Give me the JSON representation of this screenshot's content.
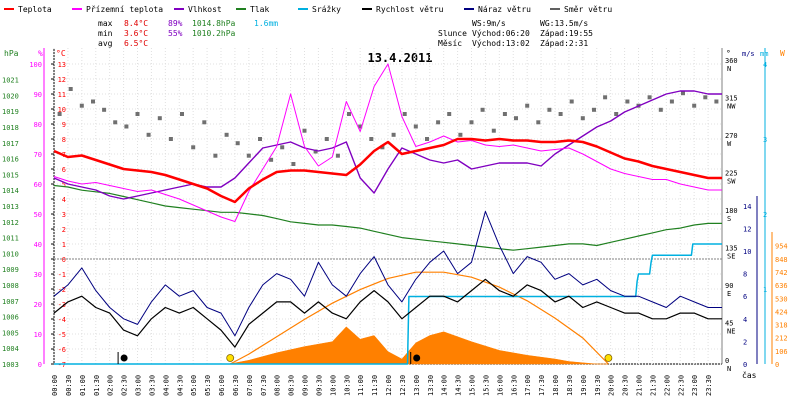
{
  "chart_data": {
    "type": "line",
    "title": "13.4.2011",
    "x_label": "čas",
    "x_ticks": [
      "00:00",
      "00:30",
      "01:00",
      "01:30",
      "02:00",
      "02:30",
      "03:00",
      "03:30",
      "04:00",
      "04:30",
      "05:00",
      "05:30",
      "06:00",
      "06:30",
      "07:00",
      "07:30",
      "08:00",
      "08:30",
      "09:00",
      "09:30",
      "10:00",
      "10:30",
      "11:00",
      "11:30",
      "12:00",
      "12:30",
      "13:00",
      "13:30",
      "14:00",
      "14:30",
      "15:00",
      "15:30",
      "16:00",
      "16:30",
      "17:00",
      "17:30",
      "18:00",
      "18:30",
      "19:00",
      "19:30",
      "20:00",
      "20:30",
      "21:00",
      "21:30",
      "22:00",
      "22:30",
      "23:00",
      "23:30"
    ],
    "legend": [
      {
        "label": "Teplota",
        "color": "#ff0000"
      },
      {
        "label": "Přízemní teplota",
        "color": "#ff00ff"
      },
      {
        "label": "Vlhkost",
        "color": "#8000c0"
      },
      {
        "label": "Tlak",
        "color": "#208020"
      },
      {
        "label": "Srážky",
        "color": "#00b0e0"
      },
      {
        "label": "Rychlost větru",
        "color": "#000000"
      },
      {
        "label": "Náraz větru",
        "color": "#000080"
      },
      {
        "label": "Směr větru",
        "color": "#606060"
      }
    ],
    "stats": {
      "rows": [
        {
          "label": "max",
          "temp": "8.4°C",
          "hum": "89%",
          "press": "1014.8hPa",
          "rain": "1.6mm"
        },
        {
          "label": "min",
          "temp": "3.6°C",
          "hum": "55%",
          "press": "1010.2hPa",
          "rain": ""
        },
        {
          "label": "avg",
          "temp": "6.5°C",
          "hum": "",
          "press": "",
          "rain": ""
        }
      ],
      "wind": {
        "ws": "WS:9m/s",
        "wg": "WG:13.5m/s"
      },
      "sun": {
        "label": "Slunce",
        "rise": "Východ:06:20",
        "set": "Západ:19:55"
      },
      "moon": {
        "label": "Měsíc",
        "rise": "Východ:13:02",
        "set": "Západ:2:31"
      }
    },
    "axes": {
      "hpa": {
        "unit": "hPa",
        "ticks": [
          1003,
          1004,
          1005,
          1006,
          1007,
          1008,
          1009,
          1010,
          1011,
          1012,
          1013,
          1014,
          1015,
          1016,
          1017,
          1018,
          1019,
          1020,
          1021
        ]
      },
      "humidity": {
        "unit": "%",
        "ticks": [
          0,
          10,
          20,
          30,
          40,
          50,
          60,
          70,
          80,
          90,
          100
        ]
      },
      "temperature": {
        "unit": "°C",
        "ticks": [
          -7,
          -6,
          -5,
          -4,
          -3,
          -2,
          -1,
          0,
          1,
          2,
          3,
          4,
          5,
          6,
          7,
          8,
          9,
          10,
          11,
          12,
          13
        ]
      },
      "direction": {
        "unit": "°",
        "ticks": [
          {
            "deg": "0",
            "dir": "N"
          },
          {
            "deg": "45",
            "dir": "NE"
          },
          {
            "deg": "90",
            "dir": "E"
          },
          {
            "deg": "135",
            "dir": "SE"
          },
          {
            "deg": "180",
            "dir": "S"
          },
          {
            "deg": "225",
            "dir": "SW"
          },
          {
            "deg": "270",
            "dir": "W"
          },
          {
            "deg": "315",
            "dir": "NW"
          },
          {
            "deg": "360",
            "dir": "N"
          }
        ]
      },
      "wind_speed": {
        "unit": "m/s",
        "ticks": [
          0,
          2,
          4,
          6,
          8,
          10,
          12,
          14
        ]
      },
      "rain": {
        "unit": "mm",
        "ticks": [
          1,
          2,
          3,
          4
        ]
      },
      "solar": {
        "unit": "W",
        "ticks": [
          0,
          106,
          212,
          318,
          424,
          530,
          636,
          742,
          848,
          954
        ]
      }
    },
    "series": [
      {
        "name": "Teplota",
        "unit": "°C",
        "x": [
          0,
          0.5,
          1,
          1.5,
          2,
          2.5,
          3,
          3.5,
          4,
          4.5,
          5,
          5.5,
          6,
          6.5,
          7,
          7.5,
          8,
          8.5,
          9,
          9.5,
          10,
          10.5,
          11,
          11.5,
          12,
          12.5,
          13,
          13.5,
          14,
          14.5,
          15,
          15.5,
          16,
          16.5,
          17,
          17.5,
          18,
          18.5,
          19,
          19.5,
          20,
          20.5,
          21,
          21.5,
          22,
          22.5,
          23,
          23.5,
          24
        ],
        "y": [
          7.2,
          6.8,
          6.9,
          6.6,
          6.3,
          6.0,
          5.9,
          5.8,
          5.6,
          5.3,
          5.0,
          4.7,
          4.2,
          3.8,
          4.7,
          5.3,
          5.8,
          5.9,
          5.9,
          5.8,
          5.7,
          5.6,
          6.3,
          7.2,
          7.8,
          7.0,
          7.2,
          7.4,
          7.6,
          8.0,
          8.0,
          7.9,
          8.0,
          7.9,
          7.9,
          7.8,
          7.8,
          7.9,
          7.8,
          7.5,
          7.1,
          6.7,
          6.5,
          6.2,
          6.0,
          5.8,
          5.6,
          5.4,
          5.4
        ]
      },
      {
        "name": "Přízemní teplota",
        "unit": "°C",
        "x": [
          0,
          0.5,
          1,
          1.5,
          2,
          2.5,
          3,
          3.5,
          4,
          4.5,
          5,
          5.5,
          6,
          6.5,
          7,
          7.5,
          8,
          8.5,
          9,
          9.5,
          10,
          10.5,
          11,
          11.5,
          12,
          12.5,
          13,
          13.5,
          14,
          14.5,
          15,
          15.5,
          16,
          16.5,
          17,
          17.5,
          18,
          18.5,
          19,
          19.5,
          20,
          20.5,
          21,
          21.5,
          22,
          22.5,
          23,
          23.5,
          24
        ],
        "y": [
          5.5,
          5.2,
          5.0,
          5.1,
          4.9,
          4.7,
          4.5,
          4.6,
          4.3,
          4.0,
          3.6,
          3.2,
          2.8,
          2.5,
          4.5,
          6.0,
          7.5,
          11.0,
          7.5,
          6.2,
          6.8,
          10.5,
          8.5,
          11.5,
          13.0,
          9.5,
          7.5,
          7.8,
          8.2,
          7.8,
          7.9,
          7.6,
          7.5,
          7.6,
          7.4,
          7.2,
          7.3,
          7.4,
          7.0,
          6.5,
          6.0,
          5.7,
          5.5,
          5.3,
          5.3,
          5.0,
          4.8,
          4.6,
          4.6
        ]
      },
      {
        "name": "Vlhkost",
        "unit": "%",
        "x": [
          0,
          0.5,
          1,
          1.5,
          2,
          2.5,
          3,
          3.5,
          4,
          4.5,
          5,
          5.5,
          6,
          6.5,
          7,
          7.5,
          8,
          8.5,
          9,
          9.5,
          10,
          10.5,
          11,
          11.5,
          12,
          12.5,
          13,
          13.5,
          14,
          14.5,
          15,
          15.5,
          16,
          16.5,
          17,
          17.5,
          18,
          18.5,
          19,
          19.5,
          20,
          20.5,
          21,
          21.5,
          22,
          22.5,
          23,
          23.5,
          24
        ],
        "y": [
          62,
          60,
          59,
          58,
          56,
          55,
          56,
          57,
          58,
          59,
          60,
          59,
          59,
          62,
          67,
          72,
          73,
          74,
          72,
          71,
          72,
          74,
          62,
          57,
          65,
          72,
          70,
          68,
          67,
          68,
          65,
          66,
          67,
          67,
          67,
          66,
          70,
          73,
          76,
          79,
          81,
          84,
          86,
          88,
          90,
          91,
          91,
          90,
          90
        ]
      },
      {
        "name": "Tlak",
        "unit": "hPa",
        "x": [
          0,
          0.5,
          1,
          1.5,
          2,
          2.5,
          3,
          3.5,
          4,
          4.5,
          5,
          5.5,
          6,
          6.5,
          7,
          7.5,
          8,
          8.5,
          9,
          9.5,
          10,
          10.5,
          11,
          11.5,
          12,
          12.5,
          13,
          13.5,
          14,
          14.5,
          15,
          15.5,
          16,
          16.5,
          17,
          17.5,
          18,
          18.5,
          19,
          19.5,
          20,
          20.5,
          21,
          21.5,
          22,
          22.5,
          23,
          23.5,
          24
        ],
        "y": [
          1014.3,
          1014.2,
          1014.0,
          1013.9,
          1013.8,
          1013.6,
          1013.4,
          1013.2,
          1013.0,
          1012.9,
          1012.8,
          1012.7,
          1012.6,
          1012.6,
          1012.5,
          1012.4,
          1012.2,
          1012.0,
          1011.9,
          1011.8,
          1011.8,
          1011.7,
          1011.6,
          1011.4,
          1011.2,
          1011.0,
          1010.9,
          1010.8,
          1010.7,
          1010.6,
          1010.5,
          1010.4,
          1010.3,
          1010.2,
          1010.3,
          1010.4,
          1010.5,
          1010.6,
          1010.6,
          1010.5,
          1010.7,
          1010.9,
          1011.1,
          1011.3,
          1011.5,
          1011.6,
          1011.8,
          1011.9,
          1011.9
        ]
      },
      {
        "name": "Srážky",
        "unit": "mm",
        "x": [
          0,
          12.7,
          12.75,
          14.0,
          18.5,
          20.9,
          20.95,
          21.0,
          21.4,
          21.45,
          21.5,
          22.9,
          22.95,
          23.0,
          24.0
        ],
        "y": [
          0,
          0,
          0.9,
          0.9,
          0.9,
          0.9,
          1.1,
          1.2,
          1.2,
          1.35,
          1.45,
          1.45,
          1.6,
          1.6,
          1.6
        ]
      },
      {
        "name": "Rychlost větru",
        "unit": "m/s",
        "x": [
          0,
          0.5,
          1,
          1.5,
          2,
          2.5,
          3,
          3.5,
          4,
          4.5,
          5,
          5.5,
          6,
          6.5,
          7,
          7.5,
          8,
          8.5,
          9,
          9.5,
          10,
          10.5,
          11,
          11.5,
          12,
          12.5,
          13,
          13.5,
          14,
          14.5,
          15,
          15.5,
          16,
          16.5,
          17,
          17.5,
          18,
          18.5,
          19,
          19.5,
          20,
          20.5,
          21,
          21.5,
          22,
          22.5,
          23,
          23.5,
          24
        ],
        "y": [
          4.5,
          5.5,
          6.0,
          5.0,
          4.5,
          3.0,
          2.5,
          4.0,
          5.0,
          4.5,
          5.0,
          4.0,
          3.0,
          1.5,
          3.5,
          4.5,
          5.5,
          5.5,
          4.5,
          5.5,
          4.5,
          4.0,
          5.5,
          6.5,
          5.5,
          4.0,
          5.0,
          6.0,
          6.0,
          5.5,
          6.5,
          7.5,
          6.5,
          6.0,
          7.0,
          6.5,
          5.5,
          6.0,
          5.0,
          5.5,
          5.0,
          4.5,
          4.5,
          4.0,
          4.0,
          4.5,
          4.5,
          4.0,
          4.0
        ]
      },
      {
        "name": "Náraz větru",
        "unit": "m/s",
        "x": [
          0,
          0.5,
          1,
          1.5,
          2,
          2.5,
          3,
          3.5,
          4,
          4.5,
          5,
          5.5,
          6,
          6.5,
          7,
          7.5,
          8,
          8.5,
          9,
          9.5,
          10,
          10.5,
          11,
          11.5,
          12,
          12.5,
          13,
          13.5,
          14,
          14.5,
          15,
          15.5,
          16,
          16.5,
          17,
          17.5,
          18,
          18.5,
          19,
          19.5,
          20,
          20.5,
          21,
          21.5,
          22,
          22.5,
          23,
          23.5,
          24
        ],
        "y": [
          6.0,
          7.0,
          8.5,
          6.5,
          5.0,
          4.0,
          3.5,
          5.5,
          7.0,
          6.0,
          6.5,
          5.0,
          4.5,
          2.5,
          5.0,
          7.0,
          8.0,
          7.5,
          6.0,
          9.0,
          7.0,
          6.0,
          8.0,
          9.5,
          7.0,
          5.5,
          7.5,
          9.0,
          10.0,
          8.0,
          9.0,
          13.5,
          10.5,
          8.0,
          9.5,
          9.0,
          7.5,
          8.0,
          7.0,
          7.5,
          6.5,
          6.0,
          6.0,
          5.5,
          5.0,
          6.0,
          5.5,
          5.0,
          5.0
        ]
      },
      {
        "name": "Sluneční záření",
        "unit": "W",
        "x": [
          6.3,
          7,
          8,
          9,
          10,
          10.5,
          11,
          11.5,
          12,
          12.5,
          13,
          13.5,
          14,
          15,
          16,
          17,
          18,
          18.5,
          19,
          19.5,
          19.9
        ],
        "y": [
          0,
          30,
          90,
          140,
          180,
          300,
          200,
          230,
          100,
          40,
          170,
          230,
          260,
          180,
          110,
          70,
          40,
          20,
          10,
          0,
          0
        ]
      },
      {
        "name": "Sluneční dráha",
        "unit": "W",
        "x": [
          6.33,
          7,
          8,
          9,
          10,
          11,
          12,
          13,
          14,
          15,
          16,
          17,
          18,
          19,
          19.92
        ],
        "y": [
          0,
          80,
          220,
          360,
          490,
          600,
          690,
          740,
          740,
          700,
          620,
          510,
          370,
          210,
          0
        ]
      },
      {
        "name": "Směr větru",
        "unit": "°",
        "x": [
          0.2,
          0.6,
          1,
          1.4,
          1.8,
          2.2,
          2.6,
          3,
          3.4,
          3.8,
          4.2,
          4.6,
          5,
          5.4,
          5.8,
          6.2,
          6.6,
          7,
          7.4,
          7.8,
          8.2,
          8.6,
          9,
          9.4,
          9.8,
          10.2,
          10.6,
          11,
          11.4,
          11.8,
          12.2,
          12.6,
          13,
          13.4,
          13.8,
          14.2,
          14.6,
          15,
          15.4,
          15.8,
          16.2,
          16.6,
          17,
          17.4,
          17.8,
          18.2,
          18.6,
          19,
          19.4,
          19.8,
          20.2,
          20.6,
          21,
          21.4,
          21.8,
          22.2,
          22.6,
          23,
          23.4,
          23.8
        ],
        "y": [
          300,
          330,
          310,
          315,
          305,
          290,
          285,
          300,
          275,
          295,
          270,
          300,
          260,
          290,
          250,
          275,
          265,
          250,
          270,
          245,
          260,
          240,
          280,
          255,
          270,
          250,
          300,
          285,
          270,
          260,
          275,
          300,
          285,
          270,
          290,
          300,
          275,
          290,
          305,
          280,
          300,
          295,
          310,
          290,
          305,
          300,
          315,
          295,
          305,
          320,
          300,
          315,
          310,
          320,
          305,
          315,
          325,
          310,
          320,
          315
        ]
      }
    ],
    "markers": {
      "sun": [
        6.33,
        19.92
      ],
      "moon": [
        2.52,
        13.03
      ]
    }
  }
}
